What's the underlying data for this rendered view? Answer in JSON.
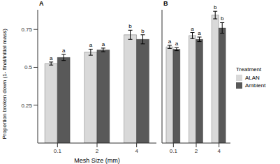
{
  "chart_data": [
    {
      "type": "bar",
      "title": "A",
      "x_label": "Mesh Size (mm)",
      "y_label": "Proportion broken down (1- final/initial mass)",
      "categories": [
        "0.1",
        "2",
        "4"
      ],
      "series": [
        {
          "name": "ALAN",
          "color": "#d9d9d9",
          "values": [
            0.525,
            0.6,
            0.715
          ],
          "errors": [
            0.01,
            0.02,
            0.03
          ],
          "letters": [
            "a",
            "a",
            "b"
          ]
        },
        {
          "name": "Ambient",
          "color": "#595959",
          "values": [
            0.565,
            0.615,
            0.685
          ],
          "errors": [
            0.02,
            0.012,
            0.03
          ],
          "letters": [
            "a",
            "a",
            "b"
          ]
        }
      ],
      "ylim": [
        0,
        0.88
      ],
      "yticks": [
        0.25,
        0.5,
        0.75
      ],
      "grid": false
    },
    {
      "type": "bar",
      "title": "B",
      "legend_title": "Treatment",
      "legend": "right",
      "categories": [
        "0.1",
        "2",
        "4"
      ],
      "series": [
        {
          "name": "ALAN",
          "color": "#d9d9d9",
          "values": [
            0.635,
            0.71,
            0.845
          ],
          "errors": [
            0.01,
            0.02,
            0.025
          ],
          "letters": [
            "a",
            "a",
            "b"
          ]
        },
        {
          "name": "Ambient",
          "color": "#595959",
          "values": [
            0.62,
            0.685,
            0.76
          ],
          "errors": [
            0.01,
            0.015,
            0.035
          ],
          "letters": [
            "a",
            "a",
            "b"
          ]
        }
      ],
      "ylim": [
        0,
        0.88
      ],
      "yticks": [
        0.25,
        0.5,
        0.75
      ],
      "grid": false,
      "tick_labels": "x"
    }
  ]
}
